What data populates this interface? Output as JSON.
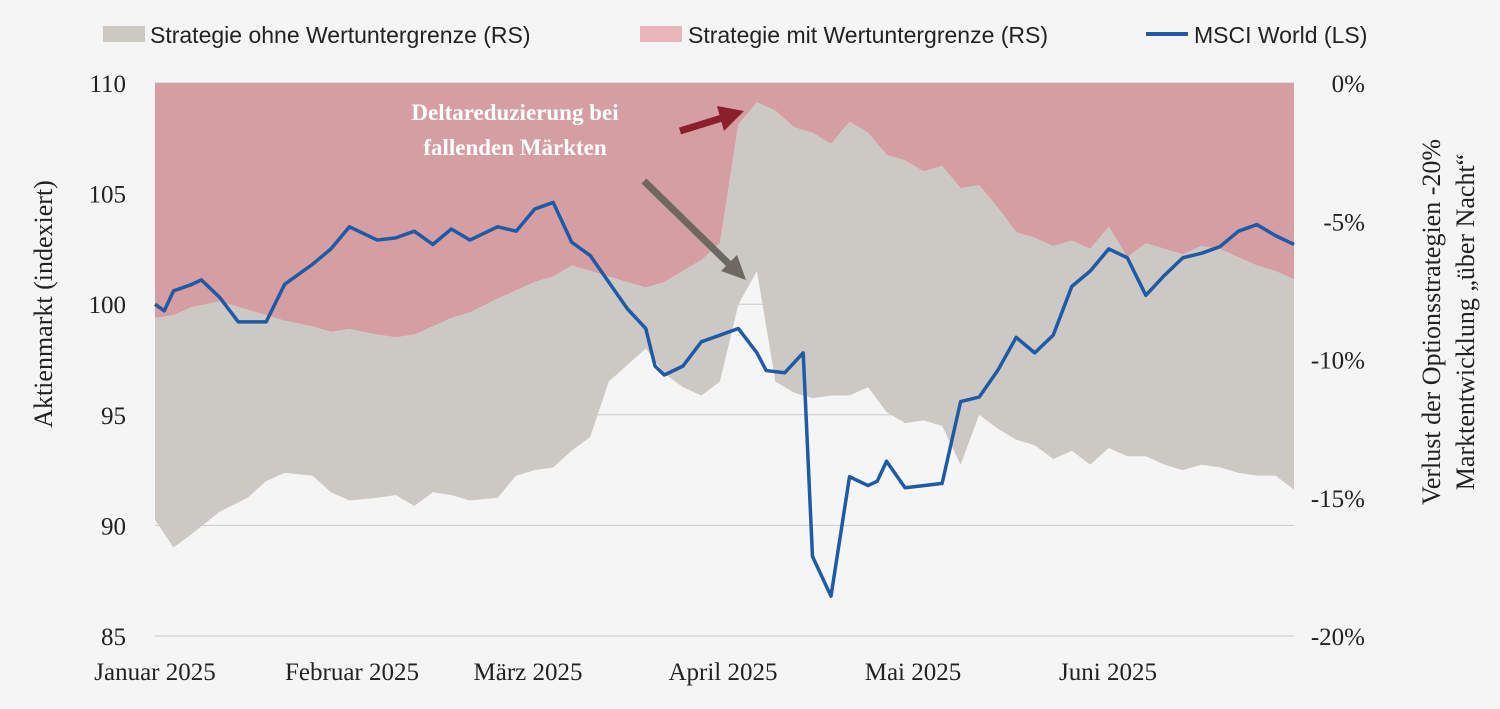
{
  "chart_data": {
    "type": "area",
    "legend_position": "top",
    "grid": true,
    "x_ticks": [
      "Januar 2025",
      "Februar 2025",
      "März 2025",
      "April 2025",
      "Mai 2025",
      "Juni 2025"
    ],
    "y_left": {
      "label": "Aktienmarkt (indexiert)",
      "range": [
        85,
        110
      ],
      "ticks": [
        "85",
        "90",
        "95",
        "100",
        "105",
        "110"
      ]
    },
    "y_right": {
      "label_line1": "Verlust der Optionsstrategien -20%",
      "label_line2": "Marktentwicklung „über Nacht“",
      "range": [
        -20,
        0
      ],
      "ticks": [
        "-20%",
        "-15%",
        "-10%",
        "-5%",
        "0%"
      ]
    },
    "annotation": {
      "line1": "Deltareduzierung bei",
      "line2": "fallenden Märkten"
    },
    "series": [
      {
        "name": "Strategie ohne Wertuntergrenze (RS)",
        "axis": "right",
        "kind": "band",
        "color": "#ccc9c4",
        "x": [
          1,
          3,
          5,
          8,
          11,
          13,
          15,
          18,
          20,
          22,
          25,
          27,
          29,
          31,
          33,
          35,
          38,
          40,
          42,
          44,
          46,
          48,
          50,
          52,
          54,
          56,
          58,
          60,
          62,
          64,
          66,
          68,
          70,
          72,
          74,
          76,
          78,
          80,
          82,
          84,
          86,
          88,
          90,
          92,
          94,
          96,
          98,
          100,
          102,
          104,
          106,
          108,
          110,
          112,
          114,
          116,
          118,
          120,
          122,
          124
        ],
        "upper": [
          -8.5,
          -8.4,
          -8.1,
          -7.9,
          -8.2,
          -8.4,
          -8.6,
          -8.8,
          -9.0,
          -8.9,
          -9.1,
          -9.2,
          -9.1,
          -8.8,
          -8.5,
          -8.3,
          -7.8,
          -7.5,
          -7.2,
          -7.0,
          -6.6,
          -6.8,
          -7.0,
          -7.2,
          -7.4,
          -7.2,
          -6.8,
          -6.4,
          -5.8,
          -1.5,
          -0.7,
          -1.0,
          -1.6,
          -1.8,
          -2.2,
          -1.4,
          -1.8,
          -2.6,
          -2.8,
          -3.2,
          -3.0,
          -3.8,
          -3.7,
          -4.5,
          -5.4,
          -5.6,
          -5.9,
          -5.7,
          -6.0,
          -5.2,
          -6.3,
          -5.8,
          -6.0,
          -6.2,
          -5.9,
          -6.0,
          -6.3,
          -6.6,
          -6.8,
          -7.1
        ],
        "lower": [
          -15.8,
          -16.8,
          -16.3,
          -15.5,
          -15.0,
          -14.4,
          -14.1,
          -14.2,
          -14.8,
          -15.1,
          -15.0,
          -14.9,
          -15.3,
          -14.8,
          -14.9,
          -15.1,
          -15.0,
          -14.2,
          -14.0,
          -13.9,
          -13.3,
          -12.8,
          -10.8,
          -10.2,
          -9.6,
          -10.5,
          -11.0,
          -11.3,
          -10.8,
          -8.0,
          -6.8,
          -10.8,
          -11.2,
          -11.4,
          -11.3,
          -11.3,
          -11.0,
          -11.9,
          -12.3,
          -12.2,
          -12.4,
          -13.8,
          -12.0,
          -12.5,
          -12.9,
          -13.1,
          -13.6,
          -13.3,
          -13.8,
          -13.2,
          -13.5,
          -13.5,
          -13.8,
          -14.0,
          -13.8,
          -13.9,
          -14.1,
          -14.2,
          -14.2,
          -14.7
        ]
      },
      {
        "name": "Strategie mit Wertuntergrenze (RS)",
        "axis": "right",
        "kind": "top-area",
        "color": "#d49ea2",
        "x": [
          1,
          3,
          5,
          8,
          11,
          13,
          15,
          18,
          20,
          22,
          25,
          27,
          29,
          31,
          33,
          35,
          38,
          40,
          42,
          44,
          46,
          48,
          50,
          52,
          54,
          56,
          58,
          60,
          62,
          64,
          66,
          68,
          70,
          72,
          74,
          76,
          78,
          80,
          82,
          84,
          86,
          88,
          90,
          92,
          94,
          96,
          98,
          100,
          102,
          104,
          106,
          108,
          110,
          112,
          114,
          116,
          118,
          120,
          122,
          124
        ],
        "lower": [
          -8.5,
          -8.4,
          -8.1,
          -7.9,
          -8.2,
          -8.4,
          -8.6,
          -8.8,
          -9.0,
          -8.9,
          -9.1,
          -9.2,
          -9.1,
          -8.8,
          -8.5,
          -8.3,
          -7.8,
          -7.5,
          -7.2,
          -7.0,
          -6.6,
          -6.8,
          -7.0,
          -7.2,
          -7.4,
          -7.2,
          -6.8,
          -6.4,
          -5.8,
          -1.5,
          -0.7,
          -1.0,
          -1.6,
          -1.8,
          -2.2,
          -1.4,
          -1.8,
          -2.6,
          -2.8,
          -3.2,
          -3.0,
          -3.8,
          -3.7,
          -4.5,
          -5.4,
          -5.6,
          -5.9,
          -5.7,
          -6.0,
          -5.2,
          -6.3,
          -5.8,
          -6.0,
          -6.2,
          -5.9,
          -6.0,
          -6.3,
          -6.6,
          -6.8,
          -7.1
        ]
      },
      {
        "name": "MSCI World (LS)",
        "axis": "left",
        "kind": "line",
        "color": "#1f5aa6",
        "x": [
          1,
          2,
          3,
          5,
          6,
          8,
          10,
          11,
          13,
          15,
          18,
          20,
          22,
          25,
          27,
          29,
          31,
          33,
          35,
          38,
          40,
          42,
          44,
          46,
          48,
          50,
          52,
          54,
          55,
          56,
          58,
          60,
          62,
          64,
          66,
          67,
          69,
          71,
          72,
          74,
          76,
          78,
          79,
          80,
          82,
          84,
          86,
          88,
          90,
          92,
          94,
          96,
          98,
          100,
          102,
          104,
          106,
          108,
          110,
          112,
          114,
          116,
          118,
          120,
          122,
          124
        ],
        "values": [
          100.0,
          99.7,
          100.6,
          100.9,
          101.1,
          100.3,
          99.2,
          99.2,
          99.2,
          100.9,
          101.8,
          102.5,
          103.5,
          102.9,
          103.0,
          103.3,
          102.7,
          103.4,
          102.9,
          103.5,
          103.3,
          104.3,
          104.6,
          102.8,
          102.2,
          101.0,
          99.8,
          98.9,
          97.2,
          96.8,
          97.2,
          98.3,
          98.6,
          98.9,
          97.8,
          97.0,
          96.9,
          97.8,
          88.6,
          86.8,
          92.2,
          91.8,
          92.0,
          92.9,
          91.7,
          91.8,
          91.9,
          95.6,
          95.8,
          97.0,
          98.5,
          97.8,
          98.6,
          100.8,
          101.5,
          102.5,
          102.1,
          100.4,
          101.3,
          102.1,
          102.3,
          102.6,
          103.3,
          103.6,
          103.1,
          102.7
        ]
      }
    ]
  }
}
